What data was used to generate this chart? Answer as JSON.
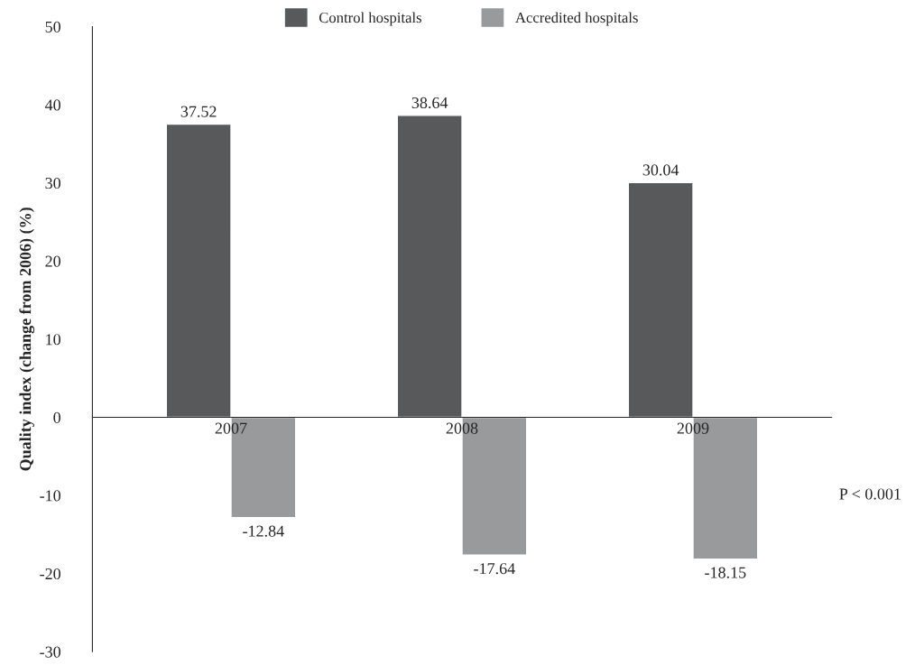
{
  "chart_data": {
    "type": "bar",
    "ylabel": "Quality index (change from 2006) (%)",
    "categories": [
      "2007",
      "2008",
      "2009"
    ],
    "series": [
      {
        "name": "Control hospitals",
        "color": "#58595b",
        "values": [
          37.52,
          38.64,
          30.04
        ]
      },
      {
        "name": "Accredited hospitals",
        "color": "#999a9c",
        "values": [
          -12.84,
          -17.64,
          -18.15
        ]
      }
    ],
    "ylim": [
      -30,
      50
    ],
    "yticks": [
      {
        "value": -30,
        "label": "-30"
      },
      {
        "value": -20,
        "label": "-20"
      },
      {
        "value": -10,
        "label": "-10"
      },
      0,
      10,
      20,
      30,
      40,
      50
    ],
    "data_labels": true,
    "legend": "top",
    "grid": false,
    "annotations": [
      "P < 0.001"
    ]
  }
}
